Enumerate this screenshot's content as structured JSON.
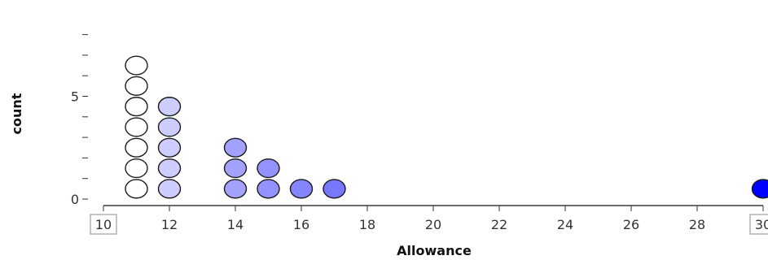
{
  "chart_data": {
    "type": "scatter",
    "subtype": "dot-plot",
    "xlabel": "Allowance",
    "ylabel": "count",
    "xlim": [
      10,
      30
    ],
    "ylim": [
      0,
      8
    ],
    "x_ticks": [
      "10",
      "12",
      "14",
      "16",
      "18",
      "20",
      "22",
      "24",
      "26",
      "28",
      "30"
    ],
    "y_tick_labels": [
      "0",
      "5"
    ],
    "y_minor_ticks": [
      0,
      1,
      2,
      3,
      4,
      5,
      6,
      7,
      8
    ],
    "grid": false,
    "boxed_tick_labels": [
      "10",
      "30"
    ],
    "points": [
      {
        "x": 11,
        "count": 7
      },
      {
        "x": 12,
        "count": 5
      },
      {
        "x": 14,
        "count": 3
      },
      {
        "x": 15,
        "count": 2
      },
      {
        "x": 16,
        "count": 1
      },
      {
        "x": 17,
        "count": 1
      },
      {
        "x": 30,
        "count": 1
      }
    ],
    "color_scale": {
      "low": "#ffffff",
      "high": "#0000ff",
      "domain": [
        11,
        30
      ]
    }
  }
}
